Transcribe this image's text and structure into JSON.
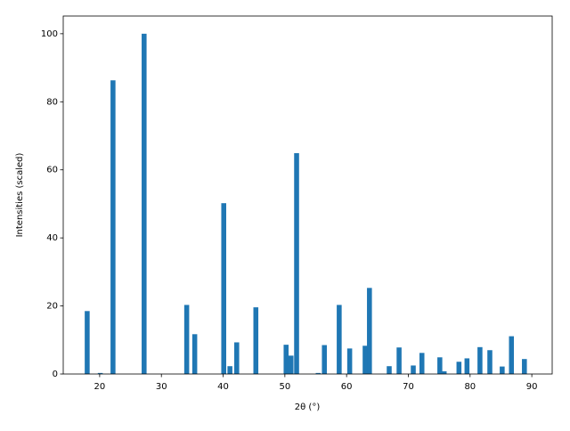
{
  "chart_data": {
    "type": "bar",
    "xlabel": "2θ (°)",
    "ylabel": "Intensities (scaled)",
    "x": [
      17.98,
      20.1,
      22.16,
      27.2,
      34.1,
      35.4,
      40.1,
      41.1,
      42.2,
      45.3,
      50.2,
      51.0,
      51.9,
      55.4,
      56.4,
      58.8,
      60.5,
      63.0,
      63.7,
      66.9,
      68.5,
      70.8,
      72.2,
      75.1,
      75.8,
      78.2,
      79.5,
      81.6,
      83.2,
      85.2,
      86.7,
      88.8
    ],
    "values": [
      18.5,
      0.3,
      86.3,
      100,
      20.3,
      11.7,
      50.2,
      2.3,
      9.3,
      19.6,
      8.6,
      5.4,
      64.9,
      0.3,
      8.5,
      20.3,
      7.5,
      8.3,
      25.3,
      2.3,
      7.8,
      2.5,
      6.2,
      4.9,
      0.8,
      3.6,
      4.6,
      7.9,
      7.0,
      2.2,
      11.1,
      4.4
    ],
    "color": "#1f77b4",
    "xlim": [
      14.1,
      93.3
    ],
    "xticks": [
      20,
      30,
      40,
      50,
      60,
      70,
      80,
      90
    ],
    "ylim": [
      0,
      105.2
    ],
    "yticks": [
      0,
      20,
      40,
      60,
      80,
      100
    ]
  }
}
